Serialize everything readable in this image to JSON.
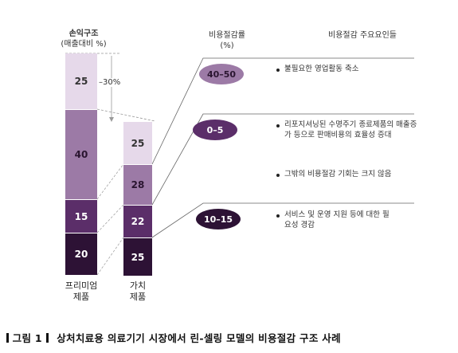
{
  "headers": {
    "pl_structure_line1": "손익구조",
    "pl_structure_line2": "(매출대비 %)",
    "savings_rate_line1": "비용절감률",
    "savings_rate_line2": "(%)",
    "key_factors": "비용절감 주요요인들"
  },
  "columns": [
    {
      "label_line1": "프리미엄",
      "label_line2": "제품",
      "segments": [
        {
          "value": "25",
          "color": "#e6d9ea"
        },
        {
          "value": "40",
          "color": "#9c7aa6"
        },
        {
          "value": "15",
          "color": "#5b2e69"
        },
        {
          "value": "20",
          "color": "#2d1235"
        }
      ]
    },
    {
      "label_line1": "가치",
      "label_line2": "제품",
      "segments": [
        {
          "value": "25",
          "color": "#e6d9ea"
        },
        {
          "value": "28",
          "color": "#9c7aa6"
        },
        {
          "value": "22",
          "color": "#5b2e69"
        },
        {
          "value": "25",
          "color": "#2d1235"
        }
      ]
    }
  ],
  "reduction_label": "–30%",
  "savings": [
    {
      "rate": "40–50",
      "color": "#9c7aa6",
      "reasons": [
        "불필요한 영업활동 축소"
      ]
    },
    {
      "rate": "0–5",
      "color": "#5b2e69",
      "reasons": [
        "리포지셔닝된 수명주기 종료제품의 매출증가 등으로 판매비용의 효율성 증대",
        "그밖의 비용절감 기회는 크지 않음"
      ]
    },
    {
      "rate": "10–15",
      "color": "#2d1235",
      "reasons": [
        "서비스 및 운영 지원 등에 대한 필요성 경감"
      ]
    }
  ],
  "caption": {
    "prefix": "그림 1",
    "text": "상처치료용 의료기기 시장에서 린-셀링 모델의 비용절감 구조 사례"
  }
}
